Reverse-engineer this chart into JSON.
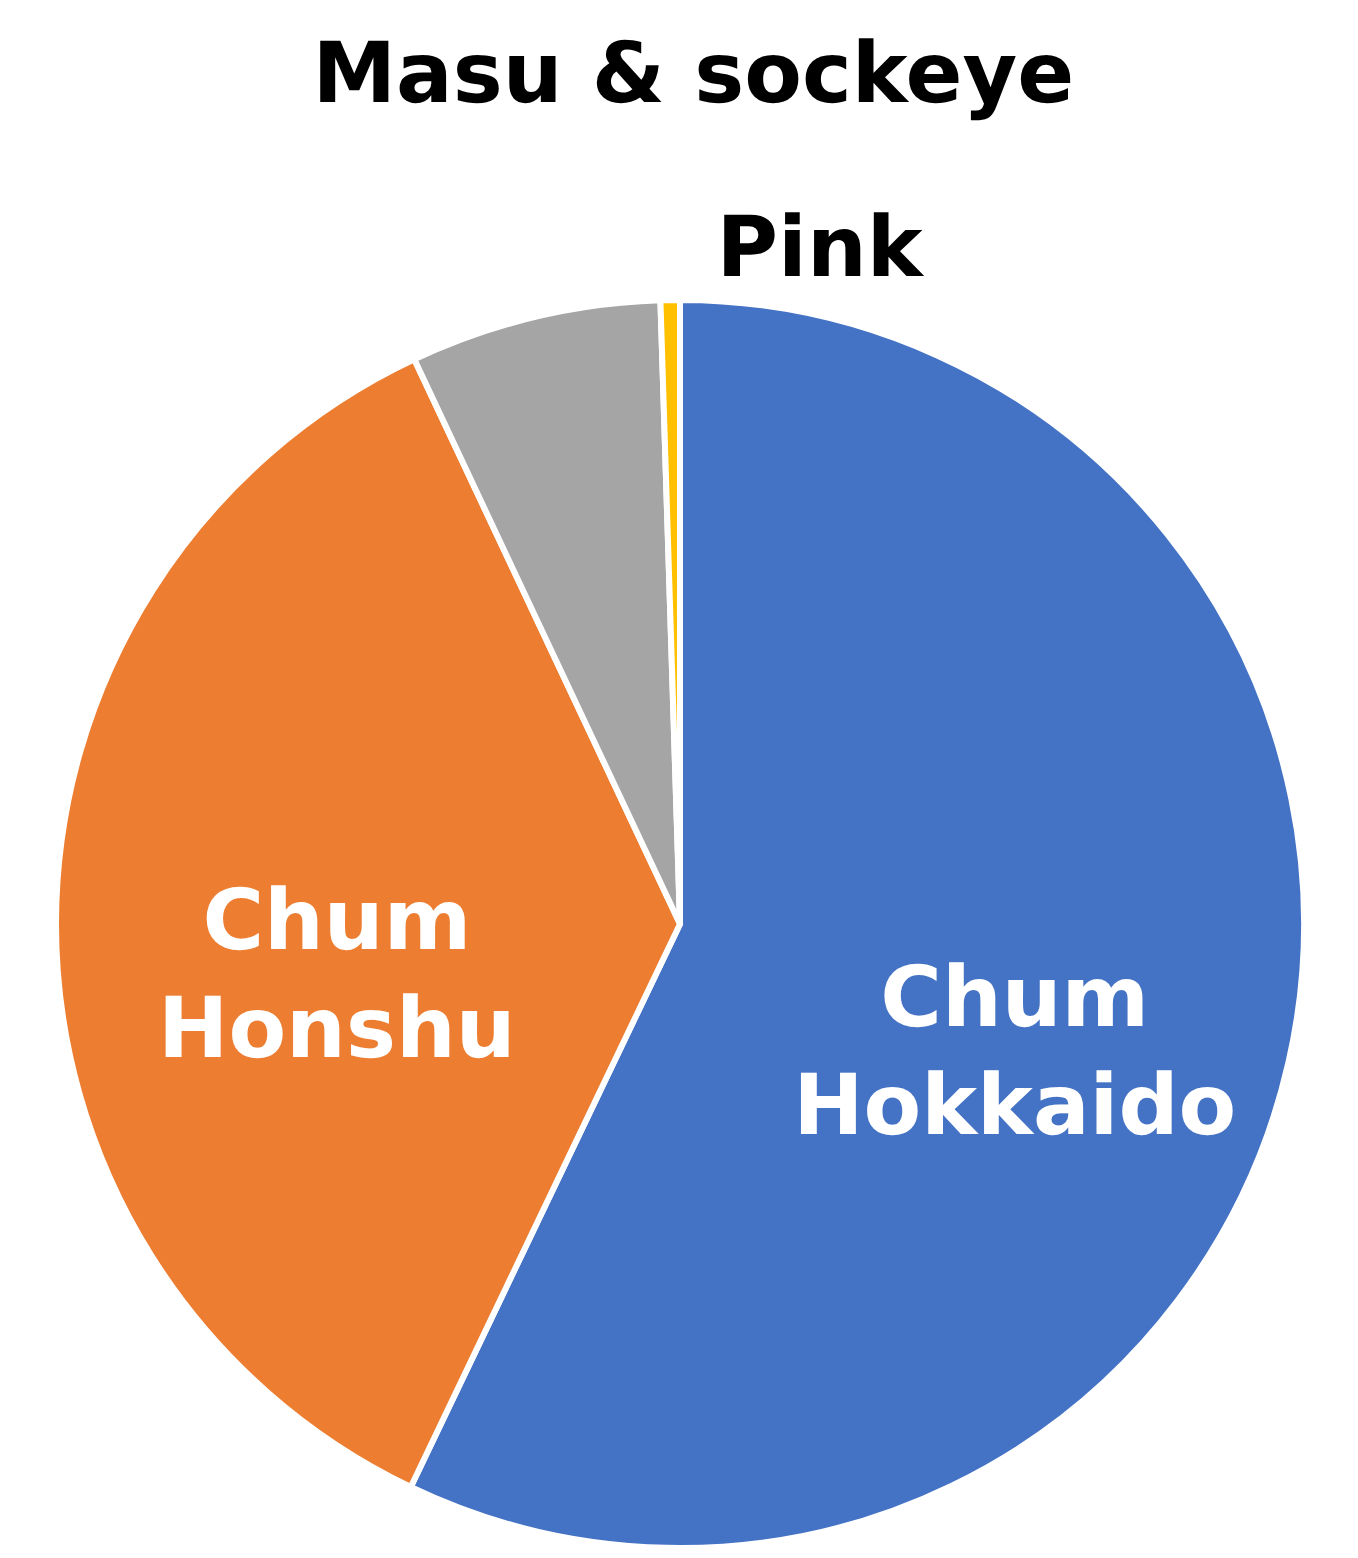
{
  "chart_data": {
    "type": "pie",
    "categories": [
      "Chum\nHokkaido",
      "Chum\nHonshu",
      "Pink",
      "Masu & sockeye"
    ],
    "values": [
      57.1,
      35.9,
      6.5,
      0.5
    ],
    "colors": [
      "#4472c4",
      "#ed7d31",
      "#a5a5a5",
      "#ffc000"
    ]
  }
}
